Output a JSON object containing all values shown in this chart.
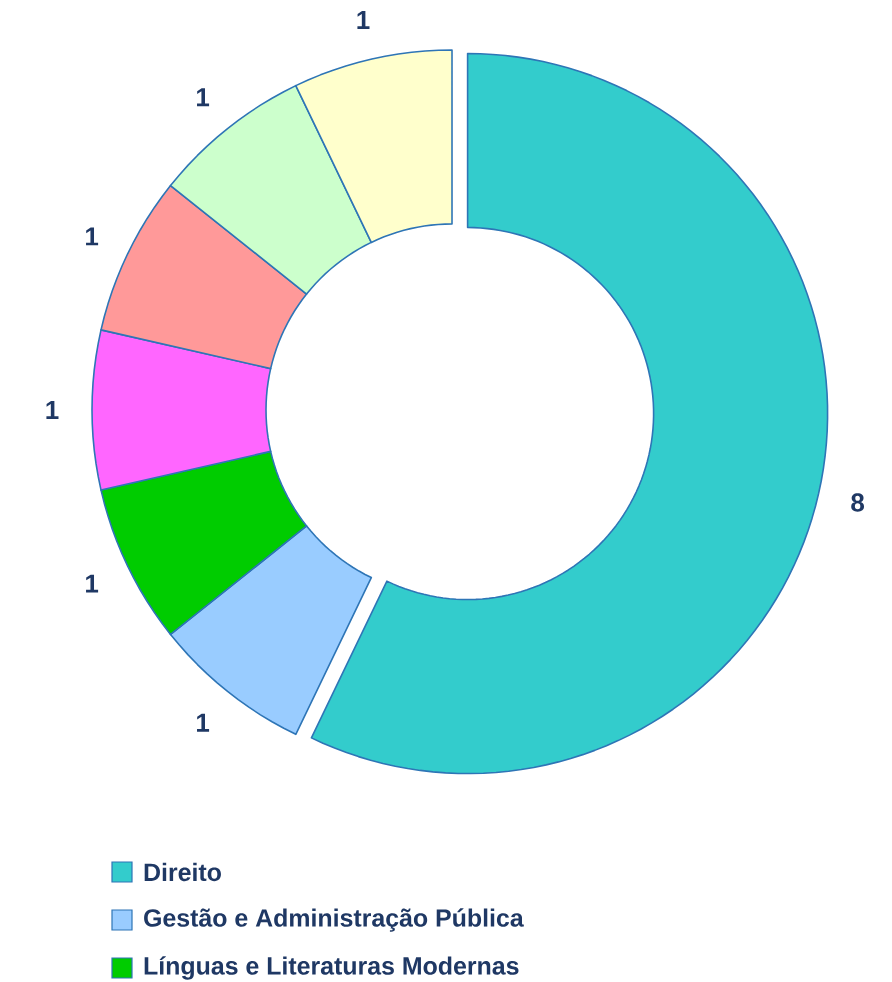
{
  "chart_data": {
    "type": "donut",
    "categories": [
      "Direito",
      "Gestão e Administração Pública",
      "Línguas e Literaturas Modernas",
      null,
      null,
      null,
      null
    ],
    "values": [
      8,
      1,
      1,
      1,
      1,
      1,
      1
    ],
    "colors": [
      "#33cccc",
      "#99ccff",
      "#00cc00",
      "#ff66ff",
      "#ff9999",
      "#ccffcc",
      "#ffffcc"
    ],
    "data_labels": true,
    "legend": "bottom"
  }
}
